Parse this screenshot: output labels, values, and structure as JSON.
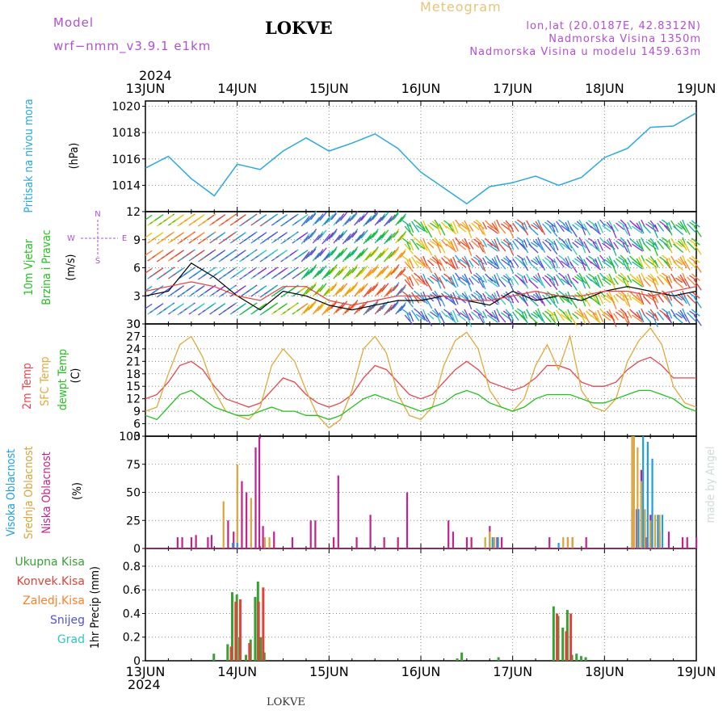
{
  "header": {
    "model_label": "Model",
    "model_name": "wrf−nmm_v3.9.1  e1km",
    "station_title": "LOKVE",
    "product": "Meteogram",
    "coords": "lon,lat (20.0187E, 42.8312N)",
    "elevation": "Nadmorska Visina 1350m",
    "model_elevation": "Nadmorska Visina u modelu 1459.63m",
    "footer_station": "LOKVE",
    "credit": "made by Angel"
  },
  "colors": {
    "pressure": "#29a9e0",
    "temp2m": "#e8454a",
    "sfc_temp": "#e0a93a",
    "dewpt": "#22c21e",
    "cloud_high": "#1e9de0",
    "cloud_mid": "#d9a43a",
    "cloud_low": "#c2228b",
    "precip_total": "#3aa036",
    "precip_conv": "#e2413a",
    "precip_frozen": "#ff7f2a",
    "snow": "#5050e0",
    "graupel": "#2dc7c0",
    "wind_line": "#000000",
    "gust_line": "#e84040",
    "purple_text": "#b14fd6",
    "tan_text": "#e8c47a"
  },
  "chart_data": [
    {
      "type": "line",
      "panel": "pressure",
      "ylabel_lines": [
        "Pritisak na nivou mora"
      ],
      "unit": "(hPa)",
      "ylim": [
        1012,
        1020.4
      ],
      "yticks": [
        1014,
        1016,
        1018,
        1020
      ],
      "x": [
        0,
        0.25,
        0.5,
        0.75,
        1.0,
        1.25,
        1.5,
        1.75,
        2.0,
        2.25,
        2.5,
        2.75,
        3.0,
        3.25,
        3.5,
        3.75,
        4.0,
        4.25,
        4.5,
        4.75,
        5.0,
        5.25,
        5.5,
        5.75,
        6.0
      ],
      "y": [
        1015.3,
        1016.2,
        1014.5,
        1013.2,
        1015.6,
        1015.2,
        1016.6,
        1017.6,
        1016.6,
        1017.2,
        1017.9,
        1016.8,
        1015.0,
        1013.8,
        1012.6,
        1013.9,
        1014.2,
        1014.7,
        1014.0,
        1014.6,
        1016.1,
        1016.8,
        1018.4,
        1018.5,
        1019.5
      ],
      "series": [
        {
          "name": "Pritisak na nivou mora",
          "color_key": "pressure"
        }
      ]
    },
    {
      "type": "line",
      "panel": "wind",
      "ylabel_lines": [
        "10m Vjetar",
        "Brzina i Pravac"
      ],
      "unit": "(m/s)",
      "ylim": [
        0,
        12
      ],
      "yticks": [
        0,
        3,
        6,
        9,
        12
      ],
      "compass_labels": [
        "N",
        "W",
        "E",
        "S"
      ],
      "x": [
        0,
        0.25,
        0.5,
        0.75,
        1.0,
        1.25,
        1.5,
        1.75,
        2.0,
        2.25,
        2.5,
        2.75,
        3.0,
        3.25,
        3.5,
        3.75,
        4.0,
        4.25,
        4.5,
        4.75,
        5.0,
        5.25,
        5.5,
        5.75,
        6.0
      ],
      "series": [
        {
          "name": "speed",
          "color_key": "wind_line",
          "values": [
            3.0,
            3.5,
            6.5,
            5.0,
            3.0,
            1.5,
            3.5,
            3.0,
            2.0,
            1.5,
            2.0,
            2.5,
            2.5,
            3.0,
            2.5,
            2.0,
            3.5,
            2.5,
            3.0,
            2.5,
            3.5,
            4.0,
            3.5,
            3.0,
            3.5
          ]
        },
        {
          "name": "gust",
          "color_key": "gust_line",
          "values": [
            3.5,
            4.0,
            4.5,
            4.0,
            3.0,
            2.5,
            4.0,
            4.0,
            2.5,
            2.0,
            2.5,
            3.0,
            3.0,
            3.0,
            2.5,
            2.5,
            3.0,
            3.5,
            3.0,
            3.0,
            3.5,
            3.5,
            3.0,
            3.5,
            4.0
          ]
        }
      ]
    },
    {
      "type": "line",
      "panel": "temperature",
      "ylabel_lines": [
        "2m Temp",
        "SFC Temp",
        "dewpt Temp"
      ],
      "unit": "(C)",
      "ylim": [
        3,
        30
      ],
      "yticks": [
        3,
        6,
        9,
        12,
        15,
        18,
        21,
        24,
        27,
        30
      ],
      "x": [
        0,
        0.125,
        0.25,
        0.375,
        0.5,
        0.625,
        0.75,
        0.875,
        1.0,
        1.125,
        1.25,
        1.375,
        1.5,
        1.625,
        1.75,
        1.875,
        2.0,
        2.125,
        2.25,
        2.375,
        2.5,
        2.625,
        2.75,
        2.875,
        3.0,
        3.125,
        3.25,
        3.375,
        3.5,
        3.625,
        3.75,
        3.875,
        4.0,
        4.125,
        4.25,
        4.375,
        4.5,
        4.625,
        4.75,
        4.875,
        5.0,
        5.125,
        5.25,
        5.375,
        5.5,
        5.625,
        5.75,
        5.875,
        6.0
      ],
      "series": [
        {
          "name": "2m Temp",
          "color_key": "temp2m",
          "values": [
            12,
            13,
            16,
            20,
            21,
            19,
            15,
            12,
            11,
            10,
            11,
            14,
            17,
            16,
            13,
            11,
            10,
            11,
            13,
            17,
            20,
            19,
            16,
            13,
            12,
            13,
            16,
            19,
            21,
            19,
            16,
            15,
            14,
            15,
            17,
            20,
            20,
            19,
            16,
            15,
            15,
            16,
            19,
            21,
            22,
            20,
            17,
            17,
            17
          ]
        },
        {
          "name": "SFC Temp",
          "color_key": "sfc_temp",
          "values": [
            9,
            10,
            18,
            25,
            27,
            22,
            14,
            9,
            8,
            7,
            10,
            20,
            24,
            21,
            14,
            8,
            5,
            7,
            14,
            24,
            27,
            23,
            13,
            8,
            7,
            10,
            20,
            26,
            28,
            24,
            14,
            10,
            9,
            12,
            20,
            25,
            19,
            27,
            14,
            10,
            9,
            12,
            21,
            26,
            29,
            25,
            15,
            11,
            10
          ]
        },
        {
          "name": "dewpt Temp",
          "color_key": "dewpt",
          "values": [
            8,
            7,
            10,
            13,
            14,
            12,
            10,
            9,
            8,
            8,
            9,
            10,
            9,
            9,
            8,
            8,
            7,
            8,
            10,
            12,
            13,
            12,
            11,
            10,
            9,
            10,
            11,
            13,
            14,
            13,
            11,
            10,
            9,
            10,
            12,
            13,
            13,
            13,
            12,
            11,
            11,
            12,
            13,
            14,
            14,
            13,
            12,
            10,
            9
          ]
        }
      ]
    },
    {
      "type": "bar",
      "panel": "clouds",
      "ylabel_lines": [
        "Visoka Oblacnost",
        "Srednja Oblacnost",
        "Niska Oblacnost"
      ],
      "unit": "(%)",
      "ylim": [
        0,
        100
      ],
      "yticks": [
        0,
        25,
        50,
        75,
        100
      ],
      "series": [
        {
          "name": "Niska Oblacnost",
          "color_key": "cloud_low",
          "x": [
            0.35,
            0.4,
            0.5,
            0.55,
            0.68,
            0.72,
            0.9,
            0.96,
            1.05,
            1.1,
            1.2,
            1.24,
            1.28,
            1.4,
            1.6,
            1.8,
            1.85,
            2.05,
            2.1,
            2.3,
            2.45,
            2.6,
            2.75,
            2.85,
            3.3,
            3.35,
            3.5,
            3.55,
            3.75,
            3.83,
            3.88,
            4.4,
            4.6,
            4.65,
            4.8,
            5.3,
            5.35,
            5.4,
            5.45,
            5.5,
            5.6,
            5.7,
            5.85,
            5.9,
            6.0
          ],
          "values": [
            10,
            10,
            10,
            12,
            10,
            12,
            25,
            15,
            60,
            50,
            90,
            100,
            20,
            15,
            10,
            25,
            25,
            10,
            65,
            10,
            30,
            10,
            10,
            50,
            25,
            15,
            10,
            10,
            20,
            10,
            10,
            10,
            10,
            10,
            10,
            35,
            35,
            70,
            10,
            30,
            15,
            15,
            10,
            10,
            10
          ]
        },
        {
          "name": "Srednja Oblacnost",
          "color_key": "cloud_mid",
          "x": [
            0.85,
            1.0,
            1.15,
            1.3,
            1.35,
            3.7,
            3.75,
            3.8,
            4.55,
            4.6,
            4.65,
            5.3,
            5.32,
            5.36,
            5.4,
            5.44,
            5.5,
            5.55,
            5.6
          ],
          "values": [
            42,
            75,
            45,
            10,
            10,
            10,
            15,
            10,
            10,
            10,
            10,
            100,
            100,
            90,
            60,
            35,
            25,
            30,
            30
          ]
        },
        {
          "name": "Visoka Oblacnost",
          "color_key": "cloud_high",
          "x": [
            0.95,
            1.0,
            3.78,
            3.84,
            5.37,
            5.42,
            5.47,
            5.52,
            5.58,
            5.63,
            4.5
          ],
          "values": [
            5,
            5,
            10,
            10,
            35,
            100,
            95,
            80,
            30,
            30,
            5
          ]
        }
      ]
    },
    {
      "type": "bar",
      "panel": "precip",
      "ylabel_lines": [
        "Ukupna Kisa",
        "Konvek.Kisa",
        "Zaledj.Kisa",
        "Snijeg",
        "Grad"
      ],
      "unit": "1hr Precip (mm)",
      "ylim": [
        0,
        0.95
      ],
      "yticks": [
        0,
        0.2,
        0.4,
        0.6,
        0.8
      ],
      "series": [
        {
          "name": "Ukupna Kisa",
          "color_key": "precip_total",
          "x": [
            0.75,
            0.9,
            0.95,
            1.0,
            1.03,
            1.1,
            1.15,
            1.2,
            1.23,
            1.26,
            1.3,
            3.4,
            3.45,
            3.85,
            4.45,
            4.5,
            4.55,
            4.6,
            4.65,
            4.7,
            4.75,
            4.8
          ],
          "values": [
            0.06,
            0.14,
            0.58,
            0.56,
            0.2,
            0.05,
            0.18,
            0.54,
            0.67,
            0.2,
            0.07,
            0.02,
            0.07,
            0.03,
            0.46,
            0.38,
            0.28,
            0.43,
            0.05,
            0.06,
            0.04,
            0.03
          ]
        },
        {
          "name": "Konvek.Kisa",
          "color_key": "precip_conv",
          "x": [
            0.92,
            0.97,
            1.02,
            1.12,
            1.22,
            1.27,
            4.47,
            4.57,
            4.62
          ],
          "values": [
            0.12,
            0.5,
            0.52,
            0.15,
            0.5,
            0.62,
            0.4,
            0.25,
            0.4
          ]
        }
      ]
    }
  ],
  "time_axis": {
    "year_top": "2024",
    "year_bottom": "2024",
    "dates": [
      "13JUN",
      "14JUN",
      "15JUN",
      "16JUN",
      "17JUN",
      "18JUN",
      "19JUN"
    ]
  }
}
